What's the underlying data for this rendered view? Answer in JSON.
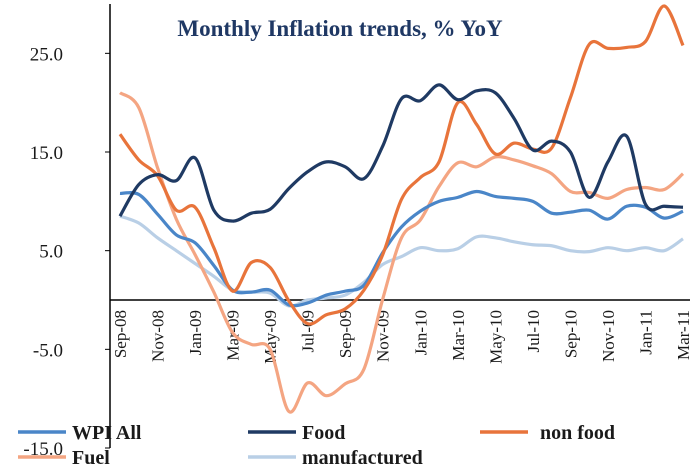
{
  "chart_data": {
    "type": "line",
    "title": "Monthly Inflation trends, % YoY",
    "categories": [
      "Sep-08",
      null,
      "Nov-08",
      null,
      "Jan-09",
      null,
      "Mar-09",
      null,
      "May-09",
      null,
      "Jul-09",
      null,
      "Sep-09",
      null,
      "Nov-09",
      null,
      "Jan-10",
      null,
      "Mar-10",
      null,
      "May-10",
      null,
      "Jul-10",
      null,
      "Sep-10",
      null,
      "Nov-10",
      null,
      "Jan-11",
      null,
      "Mar-11"
    ],
    "series": [
      {
        "name": "WPI All",
        "color": "#4a86c8",
        "values": [
          10.8,
          10.7,
          8.7,
          6.6,
          5.8,
          3.5,
          1.0,
          0.8,
          1.0,
          -0.5,
          -0.3,
          0.5,
          0.9,
          1.5,
          4.8,
          7.4,
          9.0,
          10.0,
          10.4,
          11.0,
          10.5,
          10.3,
          10.0,
          8.8,
          8.9,
          9.1,
          8.2,
          9.5,
          9.4,
          8.3,
          9.0
        ]
      },
      {
        "name": "Food",
        "color": "#1f3a63",
        "values": [
          8.5,
          11.7,
          12.7,
          12.1,
          14.4,
          9.1,
          8.0,
          8.8,
          9.2,
          11.3,
          13.0,
          14.0,
          13.5,
          12.3,
          15.6,
          20.4,
          20.2,
          21.8,
          20.3,
          21.2,
          21.0,
          18.4,
          15.2,
          16.1,
          15.0,
          10.4,
          14.0,
          16.6,
          9.7,
          9.5,
          9.4
        ]
      },
      {
        "name": "non food",
        "color": "#e8743b",
        "values": [
          16.8,
          14.2,
          12.6,
          9.1,
          9.4,
          5.3,
          0.9,
          3.8,
          3.3,
          -0.1,
          -2.4,
          -1.5,
          -0.9,
          1.0,
          4.6,
          10.2,
          12.4,
          14.0,
          20.0,
          17.8,
          14.8,
          15.9,
          15.3,
          15.4,
          20.5,
          25.9,
          25.5,
          25.6,
          26.2,
          29.8,
          25.8
        ]
      },
      {
        "name": "Fuel",
        "color": "#f4a582",
        "values": [
          21.0,
          19.5,
          13.4,
          8.2,
          4.6,
          0.8,
          -3.3,
          -4.5,
          -5.0,
          -11.3,
          -8.4,
          -9.7,
          -8.5,
          -7.0,
          0.1,
          6.3,
          8.1,
          11.5,
          13.9,
          13.5,
          14.5,
          14.2,
          13.6,
          12.8,
          11.0,
          10.9,
          10.3,
          11.2,
          11.4,
          11.2,
          12.8
        ]
      },
      {
        "name": "manufactured",
        "color": "#b9cfe6",
        "values": [
          8.5,
          7.8,
          6.3,
          5.0,
          3.7,
          2.4,
          1.0,
          0.8,
          0.7,
          -0.6,
          0.0,
          0.2,
          0.5,
          1.8,
          3.6,
          4.4,
          5.3,
          5.0,
          5.2,
          6.4,
          6.3,
          5.9,
          5.6,
          5.5,
          5.0,
          4.9,
          5.3,
          5.0,
          5.3,
          5.0,
          6.2
        ]
      }
    ],
    "ylim": [
      -15,
      30
    ],
    "yticks": [
      {
        "value": -15,
        "label": "-15.0"
      },
      {
        "value": -5,
        "label": "-5.0"
      },
      {
        "value": 5,
        "label": "5.0"
      },
      {
        "value": 15,
        "label": "15.0"
      },
      {
        "value": 25,
        "label": "25.0"
      }
    ]
  }
}
